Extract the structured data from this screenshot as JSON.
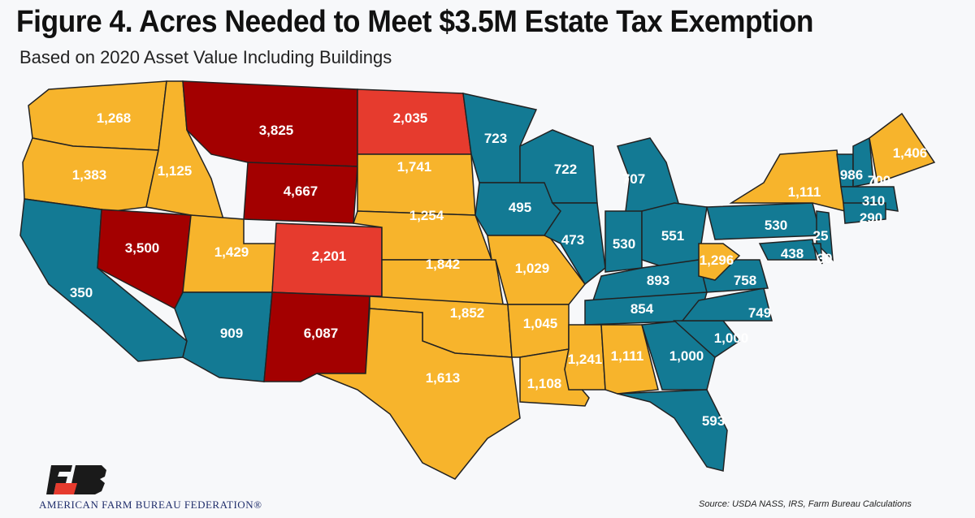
{
  "title": "Figure 4. Acres Needed to Meet $3.5M Estate Tax Exemption",
  "subtitle": "Based on 2020 Asset Value Including Buildings",
  "colors": {
    "teal": "#137a94",
    "orange": "#f7b42c",
    "darkred": "#a30000",
    "red": "#e63b2e"
  },
  "states": [
    {
      "id": "WA",
      "label": "1,268",
      "cat": "orange"
    },
    {
      "id": "OR",
      "label": "1,383",
      "cat": "orange"
    },
    {
      "id": "CA",
      "label": "350",
      "cat": "teal"
    },
    {
      "id": "NV",
      "label": "3,500",
      "cat": "darkred"
    },
    {
      "id": "ID",
      "label": "1,125",
      "cat": "orange"
    },
    {
      "id": "MT",
      "label": "3,825",
      "cat": "darkred"
    },
    {
      "id": "WY",
      "label": "4,667",
      "cat": "darkred"
    },
    {
      "id": "UT",
      "label": "1,429",
      "cat": "orange"
    },
    {
      "id": "CO",
      "label": "2,201",
      "cat": "red"
    },
    {
      "id": "AZ",
      "label": "909",
      "cat": "teal"
    },
    {
      "id": "NM",
      "label": "6,087",
      "cat": "darkred"
    },
    {
      "id": "ND",
      "label": "2,035",
      "cat": "red"
    },
    {
      "id": "SD",
      "label": "1,741",
      "cat": "orange"
    },
    {
      "id": "NE",
      "label": "1,254",
      "cat": "orange"
    },
    {
      "id": "KS",
      "label": "1,842",
      "cat": "orange"
    },
    {
      "id": "OK",
      "label": "1,852",
      "cat": "orange"
    },
    {
      "id": "TX",
      "label": "1,613",
      "cat": "orange"
    },
    {
      "id": "MN",
      "label": "723",
      "cat": "teal"
    },
    {
      "id": "IA",
      "label": "495",
      "cat": "teal"
    },
    {
      "id": "MO",
      "label": "1,029",
      "cat": "orange"
    },
    {
      "id": "AR",
      "label": "1,045",
      "cat": "orange"
    },
    {
      "id": "LA",
      "label": "1,108",
      "cat": "orange"
    },
    {
      "id": "WI",
      "label": "722",
      "cat": "teal"
    },
    {
      "id": "IL",
      "label": "473",
      "cat": "teal"
    },
    {
      "id": "MI",
      "label": "707",
      "cat": "teal"
    },
    {
      "id": "IN",
      "label": "530",
      "cat": "teal"
    },
    {
      "id": "OH",
      "label": "551",
      "cat": "teal"
    },
    {
      "id": "KY",
      "label": "893",
      "cat": "teal"
    },
    {
      "id": "TN",
      "label": "854",
      "cat": "teal"
    },
    {
      "id": "MS",
      "label": "1,241",
      "cat": "orange"
    },
    {
      "id": "AL",
      "label": "1,111",
      "cat": "orange"
    },
    {
      "id": "GA",
      "label": "1,000",
      "cat": "teal"
    },
    {
      "id": "FL",
      "label": "593",
      "cat": "teal"
    },
    {
      "id": "SC",
      "label": "1,000",
      "cat": "teal"
    },
    {
      "id": "NC",
      "label": "749",
      "cat": "teal"
    },
    {
      "id": "VA",
      "label": "758",
      "cat": "teal"
    },
    {
      "id": "WV",
      "label": "1,296",
      "cat": "orange"
    },
    {
      "id": "PA",
      "label": "530",
      "cat": "teal"
    },
    {
      "id": "NY",
      "label": "1,111",
      "cat": "orange"
    },
    {
      "id": "VT",
      "label": "986",
      "cat": "teal"
    },
    {
      "id": "NH",
      "label": "700",
      "cat": "teal"
    },
    {
      "id": "ME",
      "label": "1,406",
      "cat": "orange"
    },
    {
      "id": "MA",
      "label": "310",
      "cat": "teal"
    },
    {
      "id": "CT",
      "label": "290",
      "cat": "teal"
    },
    {
      "id": "NJ",
      "label": "25",
      "cat": "teal"
    },
    {
      "id": "MD",
      "label": "438",
      "cat": "teal"
    },
    {
      "id": "DE",
      "label": "30",
      "cat": "teal"
    }
  ],
  "logo_text": "AFB",
  "org": "AMERICAN FARM BUREAU FEDERATION®",
  "source": "Source: USDA NASS, IRS, Farm Bureau Calculations"
}
